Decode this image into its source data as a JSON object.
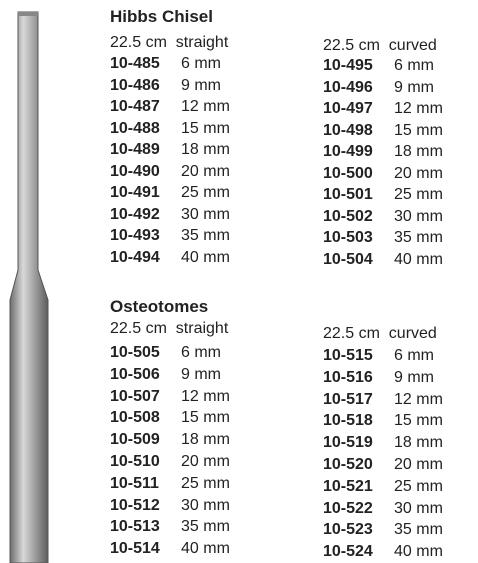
{
  "sections": [
    {
      "title": "Hibbs Chisel",
      "columns": [
        {
          "subtitle": "22.5 cm  straight",
          "items": [
            {
              "code": "10-485",
              "size": "6 mm"
            },
            {
              "code": "10-486",
              "size": "9 mm"
            },
            {
              "code": "10-487",
              "size": "12 mm"
            },
            {
              "code": "10-488",
              "size": "15 mm"
            },
            {
              "code": "10-489",
              "size": "18 mm"
            },
            {
              "code": "10-490",
              "size": "20 mm"
            },
            {
              "code": "10-491",
              "size": "25 mm"
            },
            {
              "code": "10-492",
              "size": "30 mm"
            },
            {
              "code": "10-493",
              "size": "35 mm"
            },
            {
              "code": "10-494",
              "size": "40 mm"
            }
          ]
        },
        {
          "subtitle": "22.5 cm  curved",
          "items": [
            {
              "code": "10-495",
              "size": "6 mm"
            },
            {
              "code": "10-496",
              "size": "9 mm"
            },
            {
              "code": "10-497",
              "size": "12 mm"
            },
            {
              "code": "10-498",
              "size": "15 mm"
            },
            {
              "code": "10-499",
              "size": "18 mm"
            },
            {
              "code": "10-500",
              "size": "20 mm"
            },
            {
              "code": "10-501",
              "size": "25 mm"
            },
            {
              "code": "10-502",
              "size": "30 mm"
            },
            {
              "code": "10-503",
              "size": "35 mm"
            },
            {
              "code": "10-504",
              "size": "40 mm"
            }
          ]
        }
      ]
    },
    {
      "title": "Osteotomes",
      "columns": [
        {
          "subtitle": "22.5 cm  straight",
          "items": [
            {
              "code": "10-505",
              "size": "6 mm"
            },
            {
              "code": "10-506",
              "size": "9 mm"
            },
            {
              "code": "10-507",
              "size": "12 mm"
            },
            {
              "code": "10-508",
              "size": "15 mm"
            },
            {
              "code": "10-509",
              "size": "18 mm"
            },
            {
              "code": "10-510",
              "size": "20 mm"
            },
            {
              "code": "10-511",
              "size": "25 mm"
            },
            {
              "code": "10-512",
              "size": "30 mm"
            },
            {
              "code": "10-513",
              "size": "35 mm"
            },
            {
              "code": "10-514",
              "size": "40 mm"
            }
          ]
        },
        {
          "subtitle": "22.5 cm  curved",
          "items": [
            {
              "code": "10-515",
              "size": "6 mm"
            },
            {
              "code": "10-516",
              "size": "9 mm"
            },
            {
              "code": "10-517",
              "size": "12 mm"
            },
            {
              "code": "10-518",
              "size": "15 mm"
            },
            {
              "code": "10-519",
              "size": "18 mm"
            },
            {
              "code": "10-520",
              "size": "20 mm"
            },
            {
              "code": "10-521",
              "size": "25 mm"
            },
            {
              "code": "10-522",
              "size": "30 mm"
            },
            {
              "code": "10-523",
              "size": "35 mm"
            },
            {
              "code": "10-524",
              "size": "40 mm"
            }
          ]
        }
      ]
    }
  ]
}
